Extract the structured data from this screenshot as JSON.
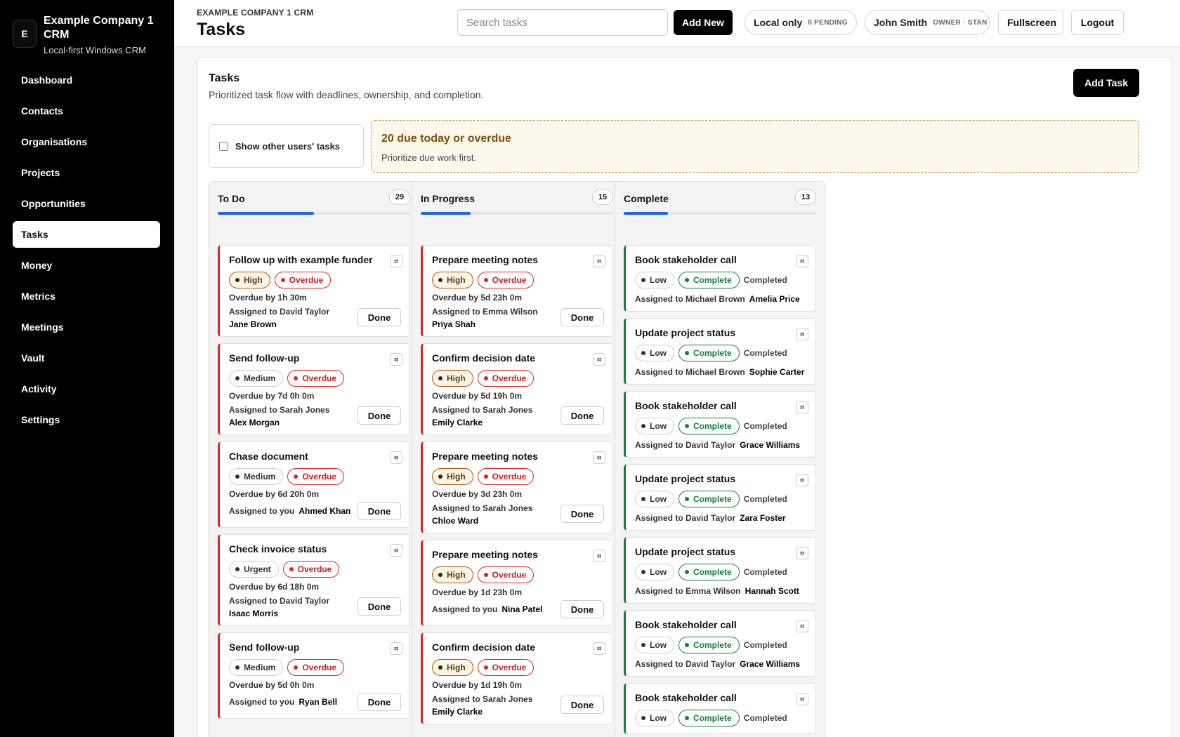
{
  "sidebar": {
    "logo_letter": "E",
    "title": "Example Company 1 CRM",
    "subtitle": "Local-first Windows CRM",
    "items": [
      {
        "label": "Dashboard"
      },
      {
        "label": "Contacts"
      },
      {
        "label": "Organisations"
      },
      {
        "label": "Projects"
      },
      {
        "label": "Opportunities"
      },
      {
        "label": "Tasks"
      },
      {
        "label": "Money"
      },
      {
        "label": "Metrics"
      },
      {
        "label": "Meetings"
      },
      {
        "label": "Vault"
      },
      {
        "label": "Activity"
      },
      {
        "label": "Settings"
      }
    ],
    "active": "Tasks"
  },
  "header": {
    "crumb": "EXAMPLE COMPANY 1 CRM",
    "title": "Tasks",
    "search_placeholder": "Search tasks",
    "add_new": "Add New",
    "sync_label": "Local only",
    "sync_pending": "0 PENDING",
    "user_name": "John Smith",
    "user_role": "OWNER · STAN",
    "fullscreen": "Fullscreen",
    "logout": "Logout"
  },
  "panel": {
    "title": "Tasks",
    "subtitle": "Prioritized task flow with deadlines, ownership, and completion.",
    "add_task": "Add Task",
    "filter_label": "Show other users' tasks",
    "alert_title": "20 due today or overdue",
    "alert_sub": "Prioritize due work first."
  },
  "done_label": "Done",
  "columns": [
    {
      "name": "To Do",
      "count": "29",
      "progress": 0.5,
      "cards": [
        {
          "title": "Follow up with example funder",
          "priority": "High",
          "status": "Overdue",
          "due": "Overdue by 1h 30m",
          "assigned": "Assigned to David Taylor",
          "person": "Jane Brown"
        },
        {
          "title": "Send follow-up",
          "priority": "Medium",
          "status": "Overdue",
          "due": "Overdue by 7d 0h 0m",
          "assigned": "Assigned to Sarah Jones",
          "person": "Alex Morgan"
        },
        {
          "title": "Chase document",
          "priority": "Medium",
          "status": "Overdue",
          "due": "Overdue by 6d 20h 0m",
          "assigned": "Assigned to you",
          "person": "Ahmed Khan"
        },
        {
          "title": "Check invoice status",
          "priority": "Urgent",
          "status": "Overdue",
          "due": "Overdue by 6d 18h 0m",
          "assigned": "Assigned to David Taylor",
          "person": "Isaac Morris"
        },
        {
          "title": "Send follow-up",
          "priority": "Medium",
          "status": "Overdue",
          "due": "Overdue by 5d 0h 0m",
          "assigned": "Assigned to you",
          "person": "Ryan Bell"
        }
      ]
    },
    {
      "name": "In Progress",
      "count": "15",
      "progress": 0.26,
      "cards": [
        {
          "title": "Prepare meeting notes",
          "priority": "High",
          "status": "Overdue",
          "due": "Overdue by 5d 23h 0m",
          "assigned": "Assigned to Emma Wilson",
          "person": "Priya Shah"
        },
        {
          "title": "Confirm decision date",
          "priority": "High",
          "status": "Overdue",
          "due": "Overdue by 5d 19h 0m",
          "assigned": "Assigned to Sarah Jones",
          "person": "Emily Clarke"
        },
        {
          "title": "Prepare meeting notes",
          "priority": "High",
          "status": "Overdue",
          "due": "Overdue by 3d 23h 0m",
          "assigned": "Assigned to Sarah Jones",
          "person": "Chloe Ward"
        },
        {
          "title": "Prepare meeting notes",
          "priority": "High",
          "status": "Overdue",
          "due": "Overdue by 1d 23h 0m",
          "assigned": "Assigned to you",
          "person": "Nina Patel"
        },
        {
          "title": "Confirm decision date",
          "priority": "High",
          "status": "Overdue",
          "due": "Overdue by 1d 19h 0m",
          "assigned": "Assigned to Sarah Jones",
          "person": "Emily Clarke"
        }
      ]
    },
    {
      "name": "Complete",
      "count": "13",
      "progress": 0.23,
      "cards": [
        {
          "title": "Book stakeholder call",
          "priority": "Low",
          "status": "Complete",
          "done_text": "Completed",
          "assigned": "Assigned to Michael Brown",
          "person": "Amelia Price"
        },
        {
          "title": "Update project status",
          "priority": "Low",
          "status": "Complete",
          "done_text": "Completed",
          "assigned": "Assigned to Michael Brown",
          "person": "Sophie Carter"
        },
        {
          "title": "Book stakeholder call",
          "priority": "Low",
          "status": "Complete",
          "done_text": "Completed",
          "assigned": "Assigned to David Taylor",
          "person": "Grace Williams"
        },
        {
          "title": "Update project status",
          "priority": "Low",
          "status": "Complete",
          "done_text": "Completed",
          "assigned": "Assigned to David Taylor",
          "person": "Zara Foster"
        },
        {
          "title": "Update project status",
          "priority": "Low",
          "status": "Complete",
          "done_text": "Completed",
          "assigned": "Assigned to Emma Wilson",
          "person": "Hannah Scott"
        },
        {
          "title": "Book stakeholder call",
          "priority": "Low",
          "status": "Complete",
          "done_text": "Completed",
          "assigned": "Assigned to David Taylor",
          "person": "Grace Williams"
        },
        {
          "title": "Book stakeholder call",
          "priority": "Low",
          "status": "Complete",
          "done_text": "Completed",
          "assigned": "",
          "person": ""
        }
      ]
    }
  ],
  "colors": {
    "accent": "#2563eb",
    "overdue": "#dc2626",
    "complete": "#15803d",
    "high": "#b45309"
  },
  "icons": {
    "drag": "drag-handle-icon"
  }
}
